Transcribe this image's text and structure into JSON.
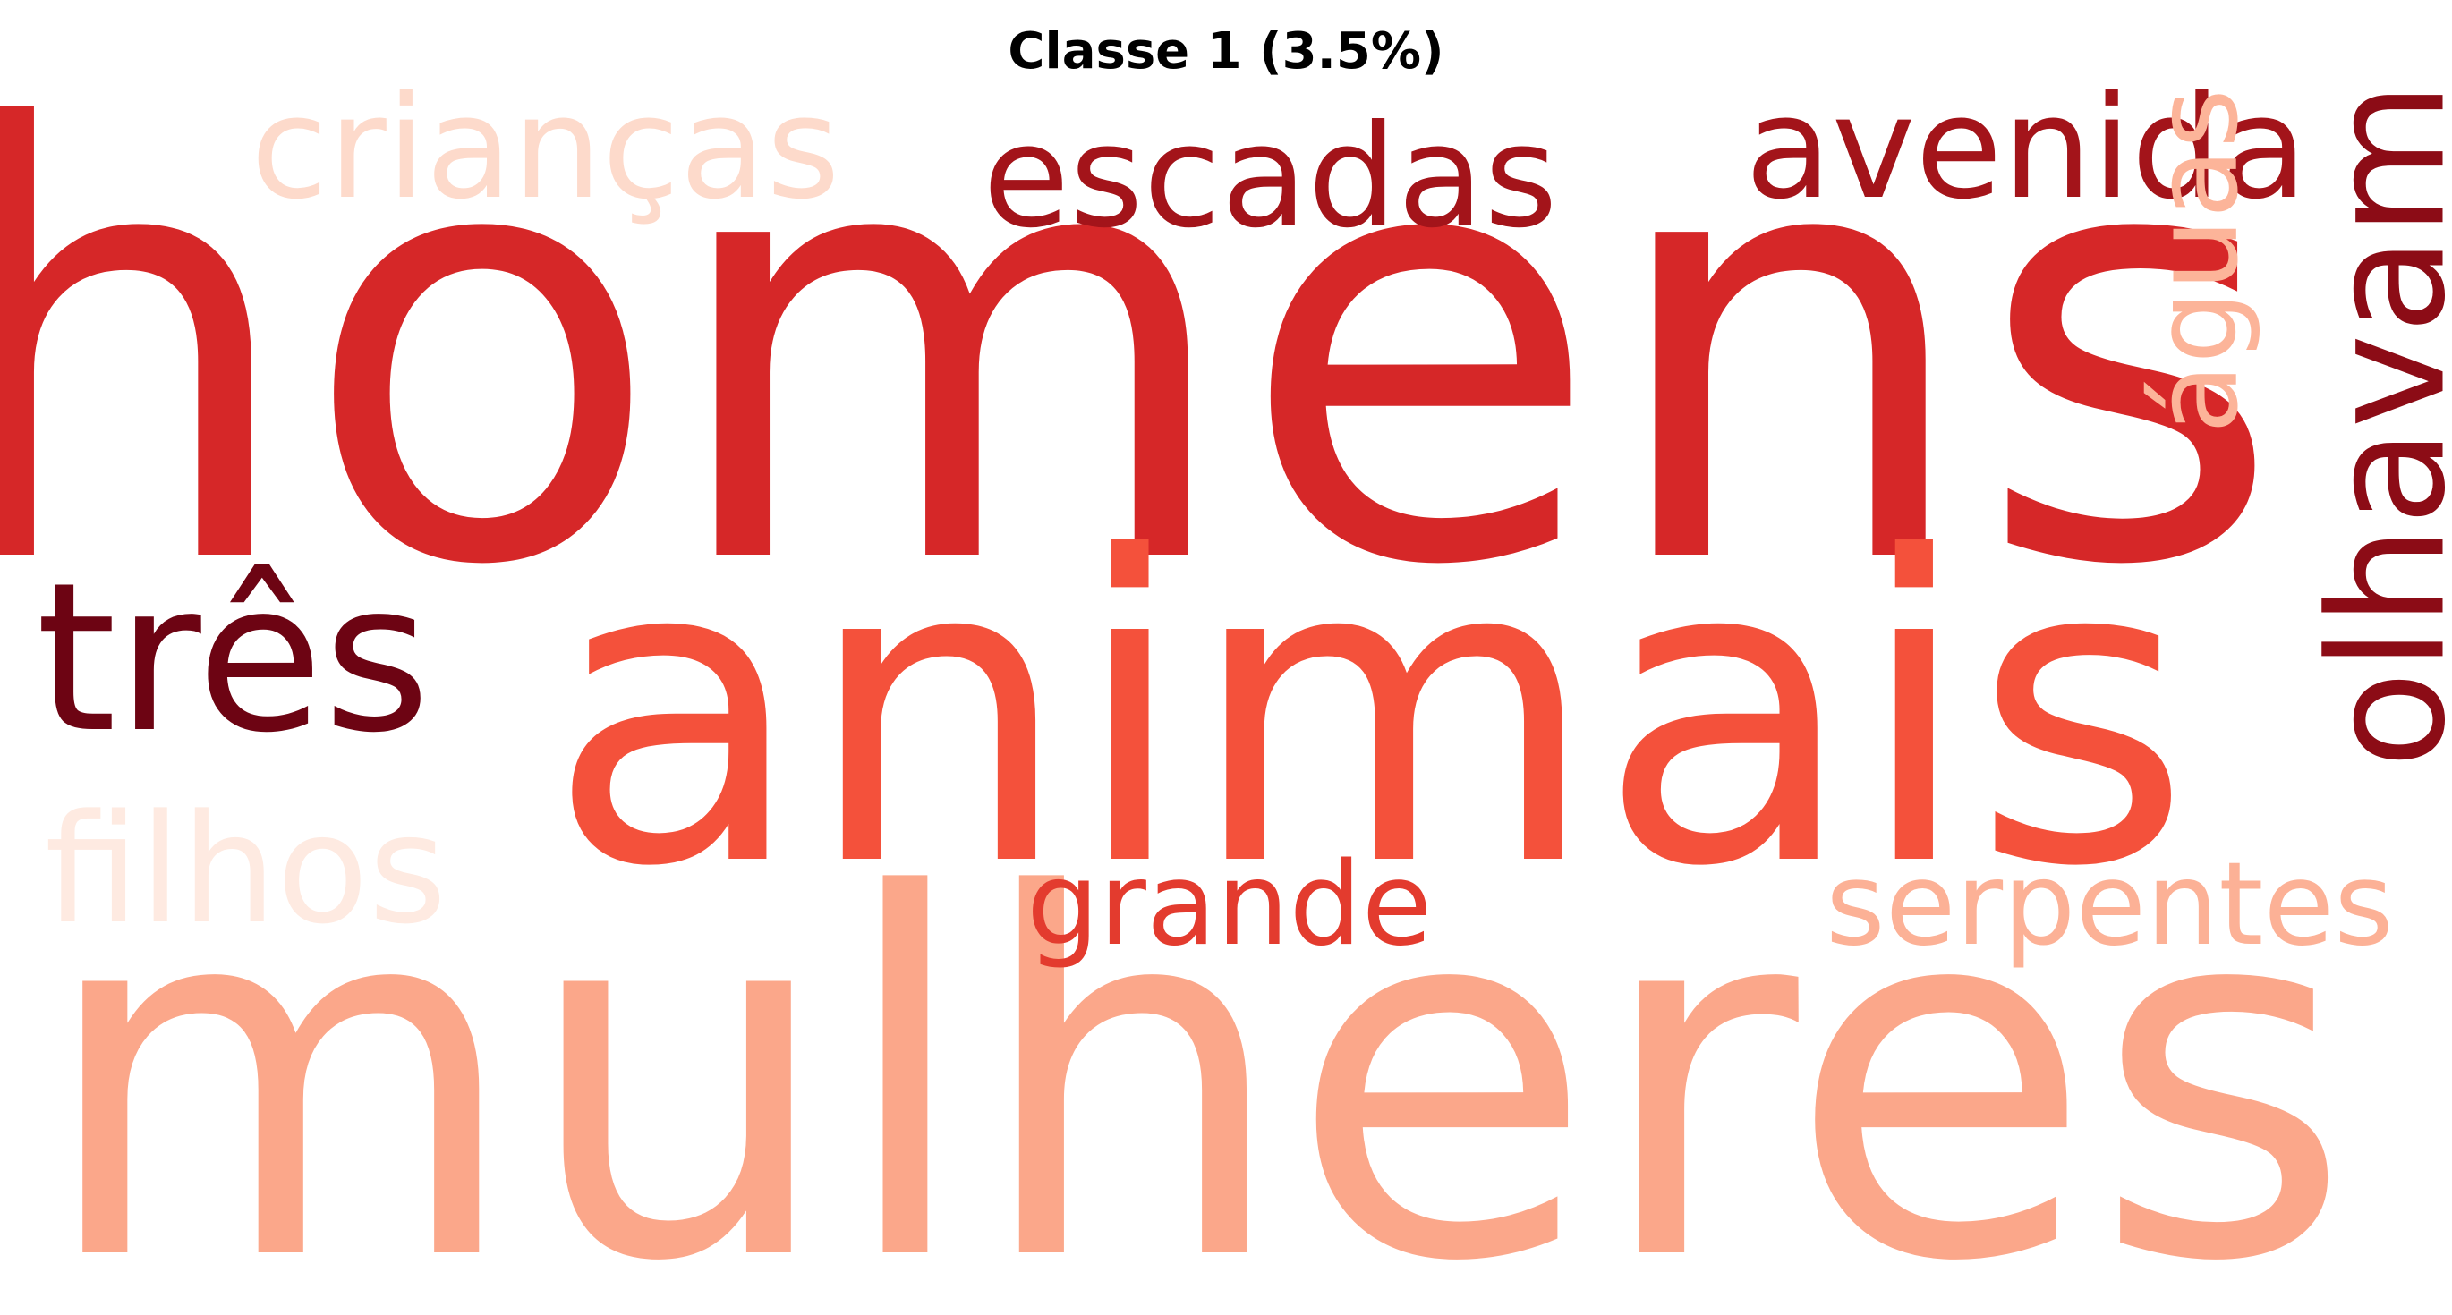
{
  "title": "Classe 1 (3.5%)",
  "words": [
    {
      "key": "homens",
      "text": "homens",
      "color": "#d62728"
    },
    {
      "key": "animais",
      "text": "animais",
      "color": "#f4513b"
    },
    {
      "key": "mulheres",
      "text": "mulheres",
      "color": "#fba78a"
    },
    {
      "key": "criancas",
      "text": "crianças",
      "color": "#fddacb"
    },
    {
      "key": "escadas",
      "text": "escadas",
      "color": "#a3141a"
    },
    {
      "key": "avenida",
      "text": "avenida",
      "color": "#a3141a"
    },
    {
      "key": "tres",
      "text": "três",
      "color": "#6d0413"
    },
    {
      "key": "filhos",
      "text": "filhos",
      "color": "#feeae1"
    },
    {
      "key": "grande",
      "text": "grande",
      "color": "#e33b2e"
    },
    {
      "key": "serpentes",
      "text": "serpentes",
      "color": "#fcb196"
    },
    {
      "key": "aguas",
      "text": "águas",
      "color": "#fcb499"
    },
    {
      "key": "olhavam",
      "text": "olhavam",
      "color": "#8c0c16"
    }
  ]
}
